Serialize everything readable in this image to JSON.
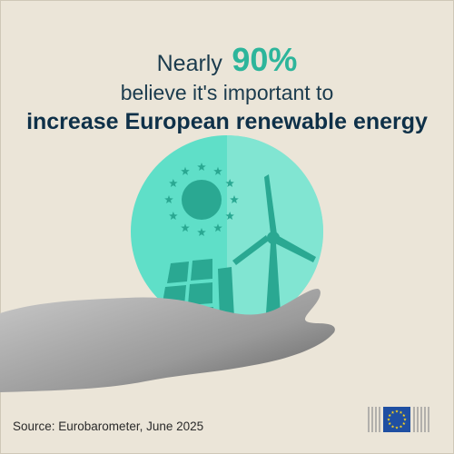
{
  "headline": {
    "lead": "Nearly",
    "figure": "90%",
    "line2": "believe it's important to",
    "line3": "increase European renewable energy"
  },
  "source": "Source: Eurobarometer, June 2025"
}
